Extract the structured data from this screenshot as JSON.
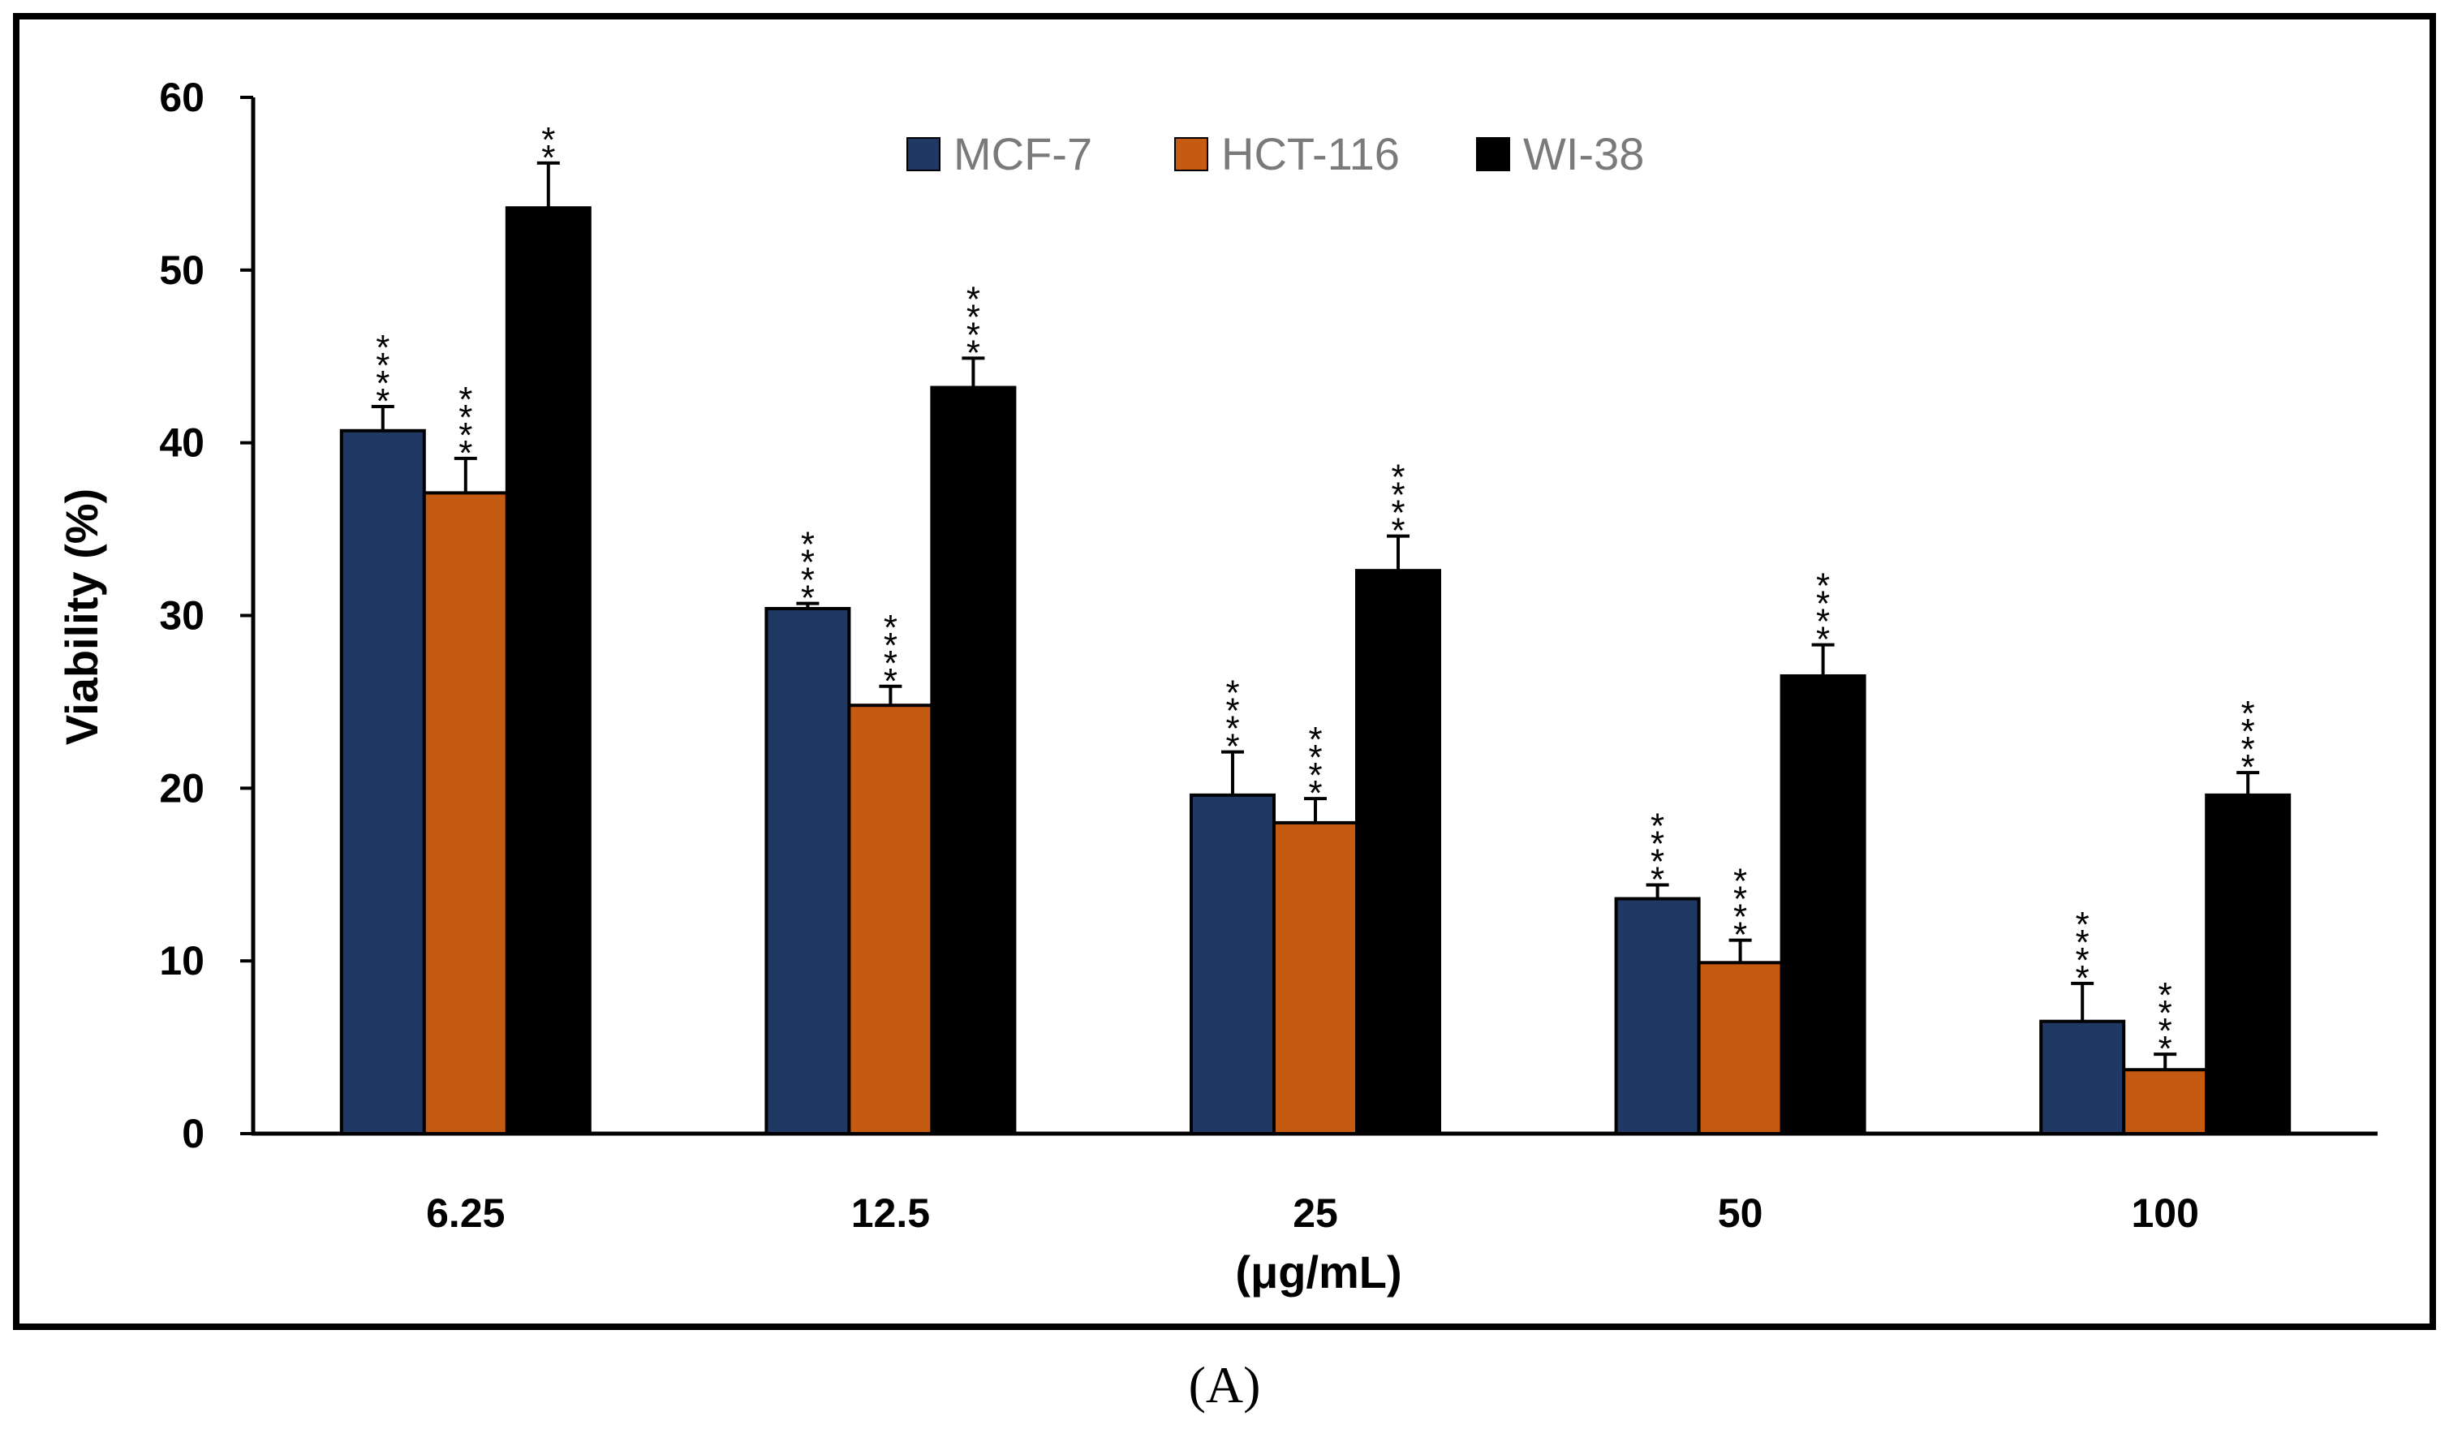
{
  "panel_label": "(A)",
  "chart_data": {
    "type": "bar",
    "xlabel": "(μg/mL)",
    "ylabel": "Viability (%)",
    "ylim": [
      0,
      60
    ],
    "yticks": [
      0,
      10,
      20,
      30,
      40,
      50,
      60
    ],
    "categories": [
      "6.25",
      "12.5",
      "25",
      "50",
      "100"
    ],
    "legend_position": "top-center",
    "grid": false,
    "series": [
      {
        "name": "MCF-7",
        "color": "#203864",
        "values": [
          40.7,
          30.4,
          19.6,
          13.6,
          6.5
        ],
        "errors": [
          1.4,
          0.3,
          2.5,
          0.8,
          2.2
        ],
        "significance": [
          "****",
          "****",
          "****",
          "****",
          "****"
        ]
      },
      {
        "name": "HCT-116",
        "color": "#c55a11",
        "values": [
          37.1,
          24.8,
          18.0,
          9.9,
          3.7
        ],
        "errors": [
          2.0,
          1.1,
          1.4,
          1.3,
          0.9
        ],
        "significance": [
          "****",
          "****",
          "****",
          "****",
          "****"
        ]
      },
      {
        "name": "WI-38",
        "color": "#000000",
        "values": [
          53.6,
          43.2,
          32.6,
          26.5,
          19.6
        ],
        "errors": [
          2.6,
          1.7,
          2.0,
          1.8,
          1.3
        ],
        "significance": [
          "**",
          "****",
          "****",
          "****",
          "****"
        ]
      }
    ]
  }
}
